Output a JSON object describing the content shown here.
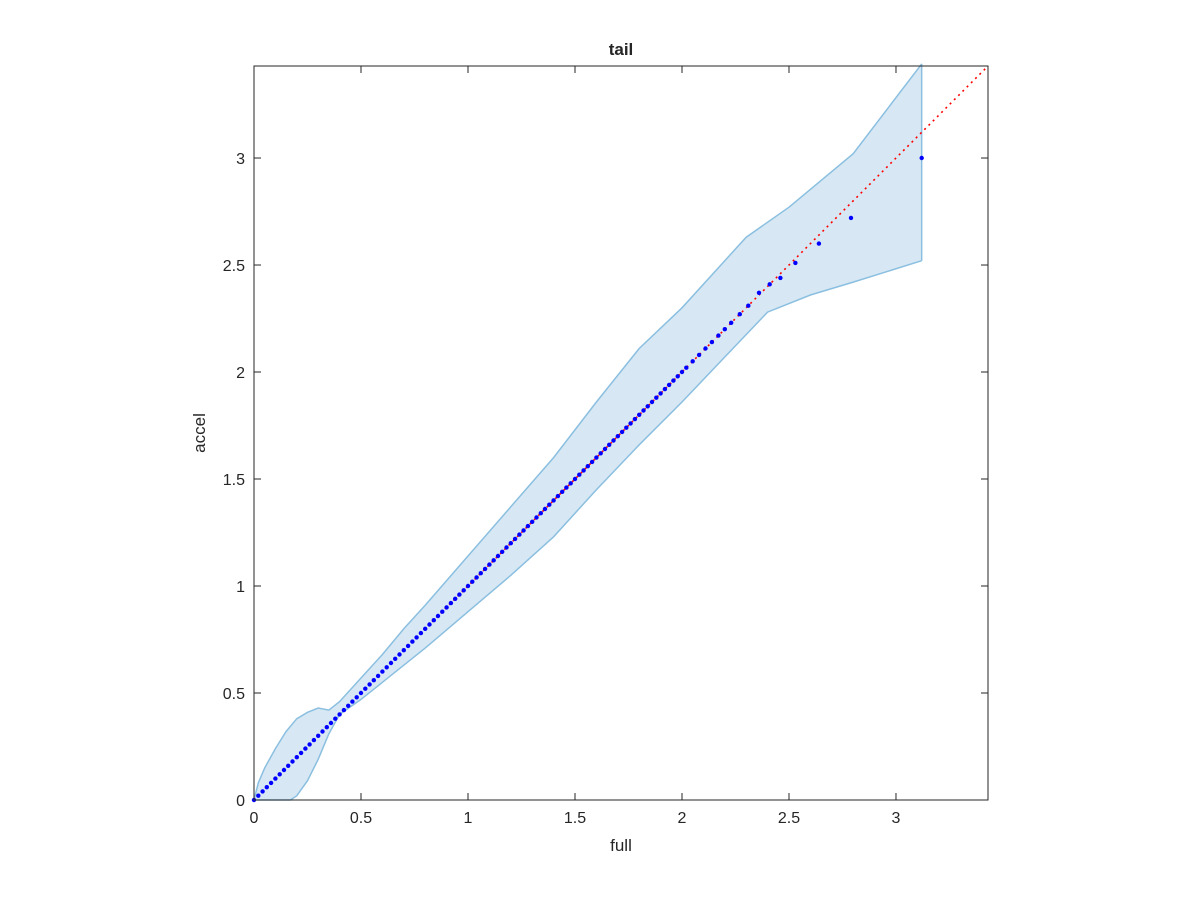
{
  "chart_data": {
    "type": "scatter",
    "title": "tail",
    "xlabel": "full",
    "ylabel": "accel",
    "xlim": [
      0,
      3.43
    ],
    "ylim": [
      0,
      3.43
    ],
    "xticks": [
      "0",
      "0.5",
      "1",
      "1.5",
      "2",
      "2.5",
      "3"
    ],
    "yticks": [
      "0",
      "0.5",
      "1",
      "1.5",
      "2",
      "2.5",
      "3"
    ],
    "grid": false,
    "colors": {
      "points": "#0000ff",
      "reference_line": "#ff0000",
      "band_fill": "#d7e8f4",
      "band_edge": "#8bbfe0",
      "axes": "#262626"
    },
    "reference_line": {
      "style": "dotted",
      "x": [
        0,
        3.43
      ],
      "y": [
        0,
        3.43
      ]
    },
    "confidence_band": {
      "upper": [
        [
          0.0,
          0.0
        ],
        [
          0.02,
          0.08
        ],
        [
          0.05,
          0.15
        ],
        [
          0.1,
          0.24
        ],
        [
          0.15,
          0.32
        ],
        [
          0.2,
          0.38
        ],
        [
          0.25,
          0.41
        ],
        [
          0.3,
          0.43
        ],
        [
          0.35,
          0.42
        ],
        [
          0.4,
          0.46
        ],
        [
          0.5,
          0.57
        ],
        [
          0.6,
          0.68
        ],
        [
          0.7,
          0.8
        ],
        [
          0.8,
          0.91
        ],
        [
          1.0,
          1.14
        ],
        [
          1.2,
          1.37
        ],
        [
          1.4,
          1.6
        ],
        [
          1.6,
          1.86
        ],
        [
          1.8,
          2.11
        ],
        [
          2.0,
          2.3
        ],
        [
          2.2,
          2.52
        ],
        [
          2.3,
          2.63
        ],
        [
          2.5,
          2.77
        ],
        [
          2.8,
          3.02
        ],
        [
          3.12,
          3.44
        ]
      ],
      "lower": [
        [
          0.0,
          0.0
        ],
        [
          0.17,
          0.0
        ],
        [
          0.2,
          0.02
        ],
        [
          0.25,
          0.09
        ],
        [
          0.3,
          0.19
        ],
        [
          0.35,
          0.31
        ],
        [
          0.4,
          0.4
        ],
        [
          0.5,
          0.47
        ],
        [
          0.6,
          0.55
        ],
        [
          0.8,
          0.71
        ],
        [
          1.0,
          0.88
        ],
        [
          1.2,
          1.05
        ],
        [
          1.4,
          1.23
        ],
        [
          1.6,
          1.45
        ],
        [
          1.8,
          1.66
        ],
        [
          2.0,
          1.86
        ],
        [
          2.2,
          2.07
        ],
        [
          2.4,
          2.28
        ],
        [
          2.6,
          2.36
        ],
        [
          2.8,
          2.42
        ],
        [
          3.12,
          2.52
        ]
      ]
    },
    "series": [
      {
        "x": [
          0.0,
          0.02,
          0.04,
          0.06,
          0.08,
          0.1,
          0.12,
          0.14,
          0.16,
          0.18,
          0.2,
          0.22,
          0.24,
          0.26,
          0.28,
          0.3,
          0.32,
          0.34,
          0.36,
          0.38,
          0.4,
          0.42,
          0.44,
          0.46,
          0.48,
          0.5,
          0.52,
          0.54,
          0.56,
          0.58,
          0.6,
          0.62,
          0.64,
          0.66,
          0.68,
          0.7,
          0.72,
          0.74,
          0.76,
          0.78,
          0.8,
          0.82,
          0.84,
          0.86,
          0.88,
          0.9,
          0.92,
          0.94,
          0.96,
          0.98,
          1.0,
          1.02,
          1.04,
          1.06,
          1.08,
          1.1,
          1.12,
          1.14,
          1.16,
          1.18,
          1.2,
          1.22,
          1.24,
          1.26,
          1.28,
          1.3,
          1.32,
          1.34,
          1.36,
          1.38,
          1.4,
          1.42,
          1.44,
          1.46,
          1.48,
          1.5,
          1.52,
          1.54,
          1.56,
          1.58,
          1.6,
          1.62,
          1.64,
          1.66,
          1.68,
          1.7,
          1.72,
          1.74,
          1.76,
          1.78,
          1.8,
          1.82,
          1.84,
          1.86,
          1.88,
          1.9,
          1.92,
          1.94,
          1.96,
          1.98,
          2.0,
          2.02,
          2.05,
          2.08,
          2.11,
          2.14,
          2.17,
          2.2,
          2.23,
          2.27,
          2.31,
          2.36,
          2.41,
          2.46,
          2.53,
          2.64,
          2.79,
          3.12
        ],
        "y": [
          0.0,
          0.02,
          0.04,
          0.06,
          0.08,
          0.1,
          0.12,
          0.14,
          0.16,
          0.18,
          0.2,
          0.22,
          0.24,
          0.26,
          0.28,
          0.3,
          0.32,
          0.34,
          0.36,
          0.38,
          0.4,
          0.42,
          0.44,
          0.46,
          0.48,
          0.5,
          0.52,
          0.54,
          0.56,
          0.58,
          0.6,
          0.62,
          0.64,
          0.66,
          0.68,
          0.7,
          0.72,
          0.74,
          0.76,
          0.78,
          0.8,
          0.82,
          0.84,
          0.86,
          0.88,
          0.9,
          0.92,
          0.94,
          0.96,
          0.98,
          1.0,
          1.02,
          1.04,
          1.06,
          1.08,
          1.1,
          1.12,
          1.14,
          1.16,
          1.18,
          1.2,
          1.22,
          1.24,
          1.26,
          1.28,
          1.3,
          1.32,
          1.34,
          1.36,
          1.38,
          1.4,
          1.42,
          1.44,
          1.46,
          1.48,
          1.5,
          1.52,
          1.54,
          1.56,
          1.58,
          1.6,
          1.62,
          1.64,
          1.66,
          1.68,
          1.7,
          1.72,
          1.74,
          1.76,
          1.78,
          1.8,
          1.82,
          1.84,
          1.86,
          1.88,
          1.9,
          1.92,
          1.94,
          1.96,
          1.98,
          2.0,
          2.02,
          2.05,
          2.08,
          2.11,
          2.14,
          2.17,
          2.2,
          2.23,
          2.27,
          2.31,
          2.37,
          2.41,
          2.44,
          2.51,
          2.6,
          2.72,
          3.0
        ]
      }
    ]
  }
}
